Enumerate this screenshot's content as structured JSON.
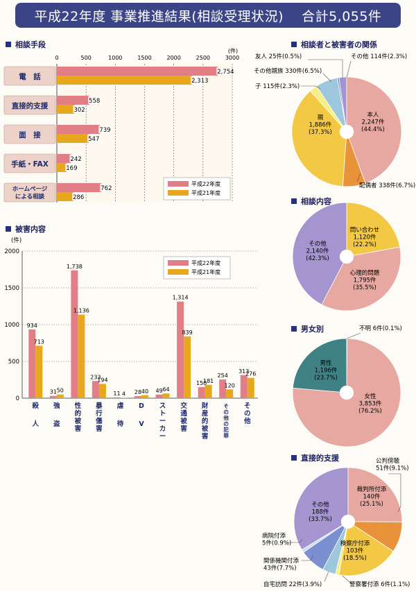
{
  "header": {
    "title": "平成22年度 事業推進結果(相談受理状況)",
    "total": "合計5,055件"
  },
  "colors": {
    "pink": "#e27f86",
    "gold": "#e8a81e",
    "banner": "#3a4486",
    "pie_pink": "#e6a8a0",
    "pie_purple": "#a494d0",
    "pie_yellow": "#f2c845",
    "pie_teal": "#3f8286",
    "pie_orange": "#e8923a",
    "pie_blue": "#7b8fd1",
    "pie_light": "#f5ef86",
    "pie_lightblue": "#9ec7dd"
  },
  "sections": {
    "consult_method": "相談手段",
    "damage": "被害内容",
    "relation": "相談者と被害者の関係",
    "content": "相談内容",
    "gender": "男女別",
    "support": "直接的支援"
  },
  "chart_data": [
    {
      "id": "consult_method",
      "type": "bar",
      "orientation": "horizontal",
      "categories": [
        "電　話",
        "直接的支援",
        "面　接",
        "手紙・FAX",
        "ホームページ|による相談"
      ],
      "series": [
        {
          "name": "平成22年度",
          "values": [
            2754,
            558,
            739,
            242,
            762
          ],
          "labels": [
            "2,754",
            "558",
            "739",
            "242",
            "762"
          ]
        },
        {
          "name": "平成21年度",
          "values": [
            2313,
            302,
            547,
            169,
            286
          ],
          "labels": [
            "2,313",
            "302",
            "547",
            "169",
            "286"
          ]
        }
      ],
      "unit": "(件)",
      "xlim": [
        0,
        3000
      ],
      "ticks": [
        "0",
        "500",
        "1000",
        "1500",
        "2000",
        "2500",
        "3000"
      ],
      "legend": "bottom-right"
    },
    {
      "id": "damage",
      "type": "bar",
      "categories": [
        "殺人",
        "強盗",
        "性的被害",
        "暴行傷害",
        "虐待",
        "DV",
        "ストーカー",
        "交通被害",
        "財産的被害",
        "その他の犯罪",
        "その他"
      ],
      "series": [
        {
          "name": "平成22年度",
          "values": [
            934,
            31,
            1738,
            233,
            11,
            28,
            49,
            1314,
            150,
            254,
            313
          ],
          "labels": [
            "934",
            "31",
            "1,738",
            "233",
            "11",
            "28",
            "49",
            "1,314",
            "150",
            "254",
            "313"
          ]
        },
        {
          "name": "平成21年度",
          "values": [
            713,
            50,
            1136,
            194,
            4,
            40,
            64,
            839,
            181,
            120,
            276
          ],
          "labels": [
            "713",
            "50",
            "1,136",
            "194",
            "4",
            "40",
            "64",
            "839",
            "181",
            "120",
            "276"
          ]
        }
      ],
      "unit": "(件)",
      "ylim": [
        0,
        2000
      ],
      "ticks": [
        "0",
        "500",
        "1000",
        "1500",
        "2000"
      ],
      "grid": true,
      "legend": "top-right"
    },
    {
      "id": "relation",
      "type": "pie",
      "slices": [
        {
          "label": "本人",
          "value": 2247,
          "count": "2,247件",
          "pct": "(44.4%)",
          "color": "#e6a8a0"
        },
        {
          "label": "配偶者",
          "value": 338,
          "count": "338件",
          "pct": "(6.7%)",
          "color": "#e8923a"
        },
        {
          "label": "親",
          "value": 1886,
          "count": "1,886件",
          "pct": "(37.3%)",
          "color": "#f2c845"
        },
        {
          "label": "子",
          "value": 115,
          "count": "115件",
          "pct": "(2.3%)",
          "color": "#f5ef86"
        },
        {
          "label": "その他親族",
          "value": 330,
          "count": "330件",
          "pct": "(6.5%)",
          "color": "#9ec7dd"
        },
        {
          "label": "友人",
          "value": 25,
          "count": "25件",
          "pct": "(0.5%)",
          "color": "#7b8fd1"
        },
        {
          "label": "その他",
          "value": 114,
          "count": "114件",
          "pct": "(2.3%)",
          "color": "#a494d0"
        }
      ]
    },
    {
      "id": "content",
      "type": "pie",
      "slices": [
        {
          "label": "問い合わせ",
          "value": 1120,
          "count": "1,120件",
          "pct": "(22.2%)",
          "color": "#f2c845"
        },
        {
          "label": "心理的問題",
          "value": 1795,
          "count": "1,795件",
          "pct": "(35.5%)",
          "color": "#e6a8a0"
        },
        {
          "label": "その他",
          "value": 2140,
          "count": "2,140件",
          "pct": "(42.3%)",
          "color": "#a494d0"
        }
      ]
    },
    {
      "id": "gender",
      "type": "pie",
      "slices": [
        {
          "label": "不明",
          "value": 6,
          "count": "6件",
          "pct": "(0.1%)",
          "color": "#a494d0"
        },
        {
          "label": "女性",
          "value": 3853,
          "count": "3,853件",
          "pct": "(76.2%)",
          "color": "#e6a8a0"
        },
        {
          "label": "男性",
          "value": 1196,
          "count": "1,196件",
          "pct": "(23.7%)",
          "color": "#3f8286"
        }
      ]
    },
    {
      "id": "support",
      "type": "pie",
      "slices": [
        {
          "label": "裁判所付添",
          "value": 140,
          "count": "140件",
          "pct": "(25.1%)",
          "color": "#e6a8a0"
        },
        {
          "label": "公判傍聴",
          "value": 51,
          "count": "51件",
          "pct": "(9.1%)",
          "color": "#e8923a"
        },
        {
          "label": "検察庁付添",
          "value": 103,
          "count": "103件",
          "pct": "(18.5%)",
          "color": "#f2c845"
        },
        {
          "label": "警察署付添",
          "value": 6,
          "count": "6件",
          "pct": "(1.1%)",
          "color": "#f5ef86"
        },
        {
          "label": "自宅訪問",
          "value": 22,
          "count": "22件",
          "pct": "(3.9%)",
          "color": "#9ec7dd"
        },
        {
          "label": "関係機関付添",
          "value": 43,
          "count": "43件",
          "pct": "(7.7%)",
          "color": "#7b8fd1"
        },
        {
          "label": "病院付添",
          "value": 5,
          "count": "5件",
          "pct": "(0.9%)",
          "color": "#c9dff0"
        },
        {
          "label": "その他",
          "value": 188,
          "count": "188件",
          "pct": "(33.7%)",
          "color": "#a494d0"
        }
      ]
    }
  ]
}
